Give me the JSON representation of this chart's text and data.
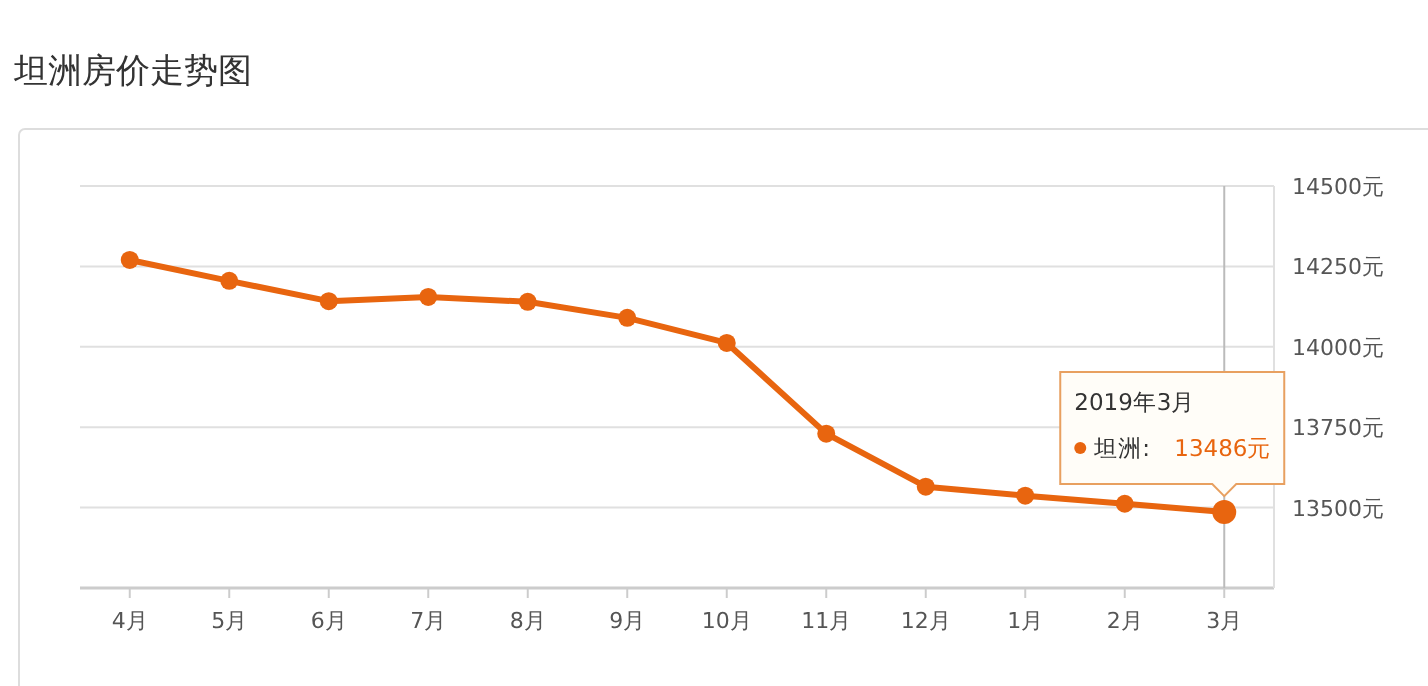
{
  "chart_data": {
    "type": "line",
    "title": "坦洲房价走势图",
    "categories": [
      "4月",
      "5月",
      "6月",
      "7月",
      "8月",
      "9月",
      "10月",
      "11月",
      "12月",
      "1月",
      "2月",
      "3月"
    ],
    "series": [
      {
        "name": "坦洲:",
        "color": "#e8650f",
        "values": [
          14270,
          14205,
          14142,
          14155,
          14140,
          14090,
          14012,
          13730,
          13565,
          13537,
          13512,
          13486
        ],
        "value_labels": [
          null,
          null,
          null,
          null,
          null,
          null,
          null,
          null,
          null,
          null,
          null,
          "13486元"
        ]
      }
    ],
    "ylim": [
      13250,
      14500
    ],
    "yticks": [
      {
        "value": 13250,
        "label": null
      },
      {
        "value": 13500,
        "label": "13500元"
      },
      {
        "value": 13750,
        "label": "13750元"
      },
      {
        "value": 14000,
        "label": "14000元"
      },
      {
        "value": 14250,
        "label": "14250元"
      },
      {
        "value": 14500,
        "label": "14500元"
      }
    ],
    "grid": "y",
    "legend": "right",
    "marker": "circle",
    "line_style": "solid",
    "ref_lines": [
      {
        "axis": "x",
        "value": "3月",
        "color": "#bbbbbb"
      }
    ],
    "annotations": [
      "2019年3月"
    ]
  }
}
